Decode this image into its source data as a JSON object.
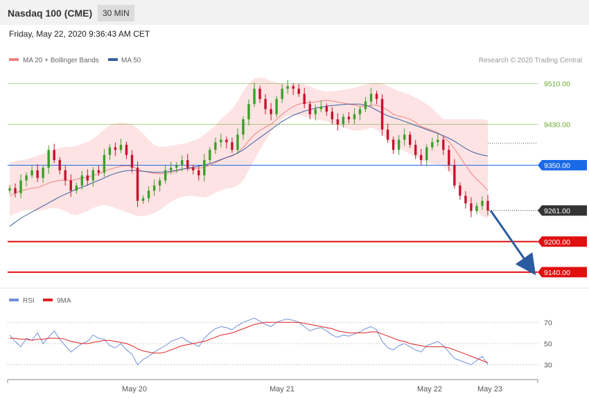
{
  "header": {
    "title": "Nasdaq 100 (CME)",
    "timeframe": "30 MIN"
  },
  "timestamp": "Friday, May 22, 2020 9:36:43 AM CET",
  "legend": {
    "ma20": "MA 20 + Bollinger Bands",
    "ma50": "MA 50",
    "ma20_color": "#f08080",
    "ma50_color": "#3a5fa0"
  },
  "copyright": "Research © 2020 Trading Central",
  "rsi_legend": {
    "rsi": "RSI",
    "ma": "9MA",
    "rsi_color": "#6f8fd8",
    "ma_color": "#e02020"
  },
  "chart_data": [
    {
      "type": "candlestick",
      "y_range": [
        9110,
        9545
      ],
      "x_labels": [
        "May 20",
        "May 21",
        "May 22",
        "May 23"
      ],
      "levels": [
        {
          "value": 9510,
          "label": "9510.00",
          "kind": "resistance",
          "color": "#6aaa2a"
        },
        {
          "value": 9430,
          "label": "9430.00",
          "kind": "resistance",
          "color": "#6aaa2a"
        },
        {
          "value": 9350,
          "label": "9350.00",
          "kind": "pivot",
          "color": "#1a6ae8"
        },
        {
          "value": 9261,
          "label": "9261.00",
          "kind": "last-price",
          "color": "#333333"
        },
        {
          "value": 9200,
          "label": "9200.00",
          "kind": "support",
          "color": "#e01010"
        },
        {
          "value": 9140,
          "label": "9140.00",
          "kind": "support",
          "color": "#e01010"
        }
      ],
      "closes": [
        9305,
        9295,
        9320,
        9330,
        9340,
        9325,
        9345,
        9380,
        9360,
        9340,
        9320,
        9300,
        9310,
        9330,
        9320,
        9340,
        9335,
        9370,
        9385,
        9380,
        9390,
        9370,
        9345,
        9280,
        9285,
        9300,
        9310,
        9320,
        9340,
        9345,
        9350,
        9360,
        9345,
        9340,
        9330,
        9360,
        9380,
        9395,
        9400,
        9395,
        9380,
        9410,
        9440,
        9470,
        9500,
        9480,
        9460,
        9450,
        9480,
        9500,
        9505,
        9500,
        9490,
        9470,
        9450,
        9460,
        9465,
        9455,
        9440,
        9430,
        9445,
        9440,
        9450,
        9460,
        9475,
        9490,
        9480,
        9420,
        9400,
        9380,
        9400,
        9410,
        9390,
        9370,
        9360,
        9385,
        9395,
        9400,
        9380,
        9350,
        9310,
        9290,
        9275,
        9260,
        9270,
        9280,
        9261
      ],
      "ma20": [
        9290,
        9295,
        9300,
        9302,
        9305,
        9306,
        9310,
        9315,
        9318,
        9320,
        9321,
        9320,
        9322,
        9325,
        9326,
        9330,
        9333,
        9338,
        9342,
        9345,
        9348,
        9349,
        9348,
        9342,
        9338,
        9336,
        9334,
        9333,
        9334,
        9336,
        9338,
        9342,
        9343,
        9344,
        9344,
        9346,
        9350,
        9355,
        9360,
        9365,
        9368,
        9374,
        9385,
        9398,
        9410,
        9418,
        9425,
        9430,
        9440,
        9450,
        9458,
        9465,
        9470,
        9472,
        9473,
        9474,
        9476,
        9477,
        9476,
        9474,
        9472,
        9470,
        9468,
        9466,
        9466,
        9467,
        9468,
        9464,
        9458,
        9450,
        9446,
        9444,
        9440,
        9434,
        9426,
        9422,
        9418,
        9414,
        9406,
        9396,
        9382,
        9366,
        9350,
        9334,
        9322,
        9312,
        9300
      ],
      "ma50": [
        9230,
        9238,
        9246,
        9252,
        9258,
        9264,
        9270,
        9276,
        9282,
        9288,
        9293,
        9298,
        9303,
        9307,
        9311,
        9316,
        9320,
        9325,
        9330,
        9334,
        9337,
        9339,
        9340,
        9339,
        9338,
        9337,
        9336,
        9336,
        9337,
        9338,
        9340,
        9342,
        9344,
        9346,
        9348,
        9350,
        9353,
        9357,
        9361,
        9365,
        9369,
        9374,
        9380,
        9388,
        9396,
        9404,
        9412,
        9420,
        9428,
        9436,
        9442,
        9448,
        9452,
        9456,
        9459,
        9462,
        9464,
        9466,
        9467,
        9468,
        9469,
        9470,
        9470,
        9470,
        9468,
        9464,
        9458,
        9452,
        9447,
        9443,
        9440,
        9436,
        9432,
        9428,
        9424,
        9420,
        9416,
        9412,
        9408,
        9403,
        9397,
        9390,
        9383,
        9377,
        9373,
        9370,
        9368
      ],
      "bb_upper": [
        9355,
        9358,
        9360,
        9362,
        9365,
        9368,
        9372,
        9376,
        9380,
        9384,
        9386,
        9386,
        9388,
        9392,
        9396,
        9402,
        9410,
        9420,
        9428,
        9432,
        9434,
        9433,
        9430,
        9422,
        9412,
        9400,
        9390,
        9386,
        9386,
        9388,
        9390,
        9392,
        9394,
        9398,
        9402,
        9410,
        9418,
        9428,
        9440,
        9450,
        9460,
        9475,
        9495,
        9510,
        9520,
        9522,
        9520,
        9515,
        9512,
        9510,
        9508,
        9508,
        9510,
        9508,
        9505,
        9500,
        9496,
        9494,
        9495,
        9496,
        9498,
        9500,
        9502,
        9505,
        9508,
        9510,
        9512,
        9510,
        9506,
        9500,
        9495,
        9492,
        9488,
        9482,
        9476,
        9470,
        9462,
        9450,
        9440,
        9440,
        9440,
        9440,
        9440,
        9440,
        9440,
        9440,
        9438
      ],
      "bb_lower": [
        9250,
        9255,
        9260,
        9262,
        9262,
        9260,
        9262,
        9265,
        9266,
        9264,
        9260,
        9254,
        9252,
        9256,
        9260,
        9266,
        9270,
        9272,
        9270,
        9266,
        9262,
        9258,
        9254,
        9250,
        9250,
        9252,
        9256,
        9262,
        9270,
        9278,
        9284,
        9288,
        9290,
        9290,
        9288,
        9286,
        9290,
        9296,
        9300,
        9304,
        9306,
        9310,
        9320,
        9340,
        9360,
        9380,
        9398,
        9415,
        9430,
        9440,
        9446,
        9448,
        9448,
        9446,
        9442,
        9440,
        9438,
        9436,
        9432,
        9428,
        9424,
        9420,
        9418,
        9418,
        9420,
        9424,
        9420,
        9410,
        9400,
        9392,
        9385,
        9378,
        9372,
        9366,
        9360,
        9356,
        9352,
        9350,
        9348,
        9340,
        9322,
        9300,
        9282,
        9270,
        9260,
        9250,
        9245
      ],
      "forecast": {
        "from": 9261,
        "to": 9140
      }
    },
    {
      "type": "line",
      "name": "RSI",
      "y_ticks": [
        70,
        50,
        30
      ],
      "y_range": [
        18,
        80
      ],
      "rsi": [
        58,
        52,
        47,
        55,
        53,
        60,
        50,
        56,
        62,
        54,
        48,
        42,
        46,
        50,
        52,
        58,
        55,
        54,
        48,
        46,
        50,
        44,
        40,
        30,
        35,
        38,
        42,
        45,
        48,
        52,
        54,
        56,
        52,
        50,
        47,
        55,
        60,
        64,
        66,
        65,
        63,
        67,
        70,
        72,
        74,
        71,
        68,
        66,
        70,
        72,
        73,
        72,
        70,
        66,
        62,
        64,
        65,
        62,
        58,
        56,
        58,
        57,
        59,
        61,
        64,
        66,
        63,
        52,
        46,
        44,
        48,
        50,
        47,
        44,
        42,
        48,
        50,
        52,
        48,
        42,
        36,
        34,
        32,
        30,
        34,
        38,
        30
      ],
      "ma9": [
        55,
        55,
        54,
        54,
        53,
        54,
        54,
        55,
        55,
        55,
        54,
        52,
        51,
        50,
        50,
        51,
        52,
        53,
        53,
        52,
        51,
        50,
        48,
        45,
        43,
        42,
        41,
        41,
        42,
        44,
        46,
        48,
        49,
        50,
        51,
        52,
        54,
        56,
        58,
        59,
        60,
        62,
        64,
        66,
        68,
        69,
        70,
        70,
        70,
        70,
        70,
        70,
        70,
        69,
        68,
        67,
        66,
        65,
        64,
        62,
        61,
        60,
        60,
        60,
        60,
        61,
        61,
        59,
        57,
        55,
        53,
        52,
        50,
        49,
        48,
        47,
        47,
        47,
        47,
        46,
        44,
        42,
        40,
        38,
        36,
        34,
        32
      ]
    }
  ]
}
